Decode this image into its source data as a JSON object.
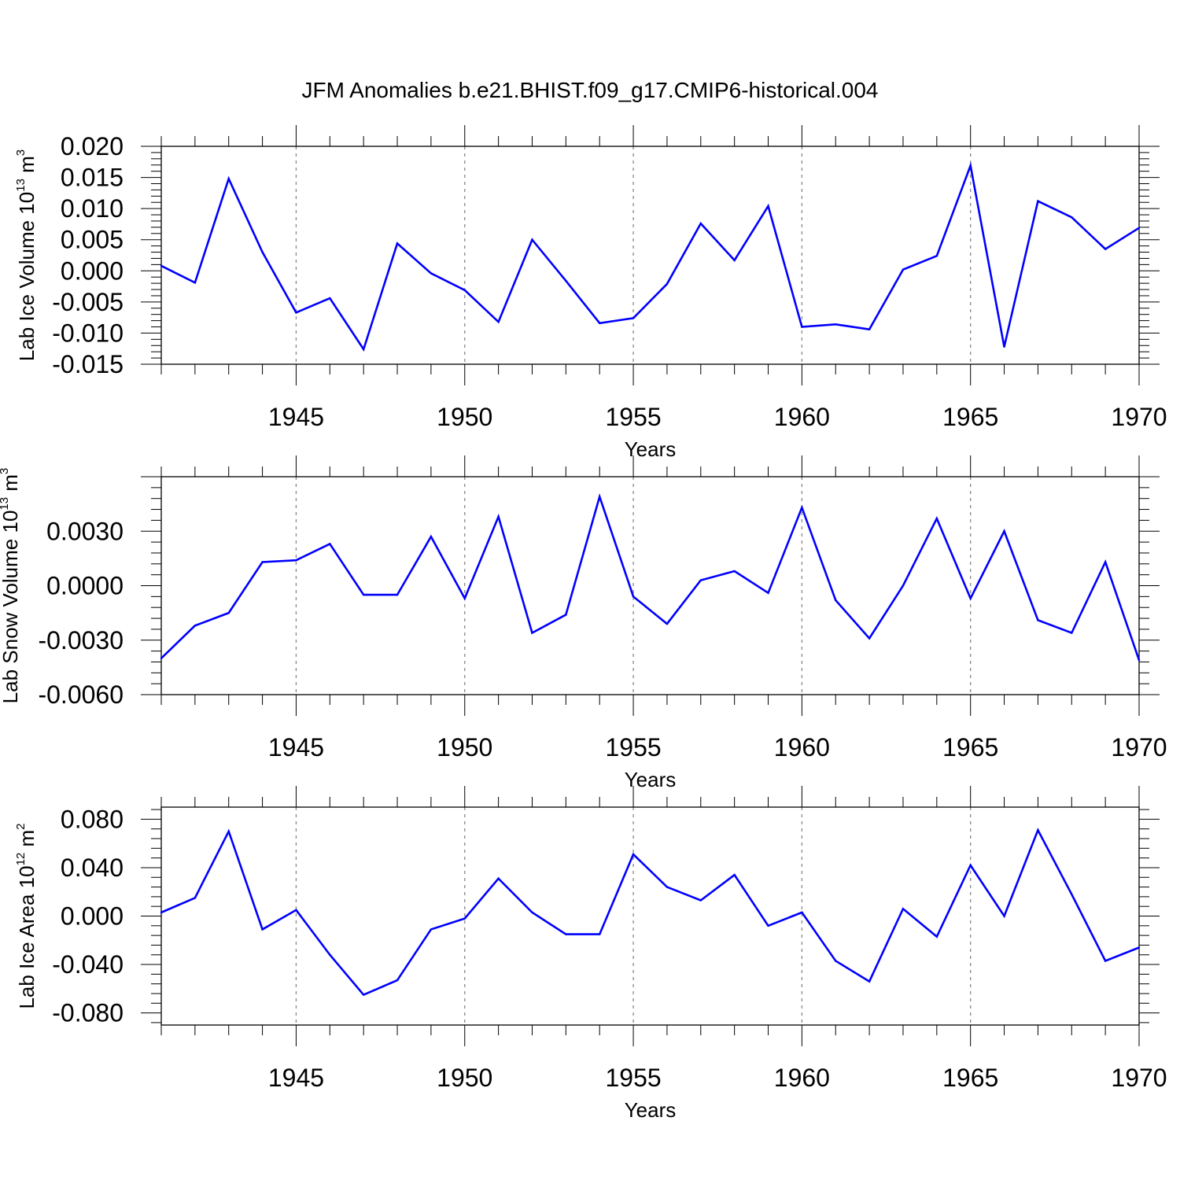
{
  "chart_data": {
    "title": "JFM Anomalies b.e21.BHIST.f09_g17.CMIP6-historical.004",
    "years": [
      1941,
      1942,
      1943,
      1944,
      1945,
      1946,
      1947,
      1948,
      1949,
      1950,
      1951,
      1952,
      1953,
      1954,
      1955,
      1956,
      1957,
      1958,
      1959,
      1960,
      1961,
      1962,
      1963,
      1964,
      1965,
      1966,
      1967,
      1968,
      1969,
      1970
    ],
    "line_color": "#0000ff",
    "gridline_color": "#888888",
    "panels": [
      {
        "type": "line",
        "ylabel_pre": "Lab Ice Volume 10",
        "ylabel_exp": "13",
        "ylabel_unit": " m",
        "ylabel_unit_exp": "3",
        "xlabel": "Years",
        "xlim": [
          1941,
          1970
        ],
        "ylim": [
          -0.015,
          0.02
        ],
        "yticks": [
          -0.015,
          -0.01,
          -0.005,
          0.0,
          0.005,
          0.01,
          0.015,
          0.02
        ],
        "ytick_labels": [
          "-0.015",
          "-0.010",
          "-0.005",
          "0.000",
          "0.005",
          "0.010",
          "0.015",
          "0.020"
        ],
        "xticks": [
          1945,
          1950,
          1955,
          1960,
          1965,
          1970
        ],
        "xtick_labels": [
          "1945",
          "1950",
          "1955",
          "1960",
          "1965",
          "1970"
        ],
        "values": [
          0.0008,
          -0.0019,
          0.0148,
          0.003,
          -0.0067,
          -0.0044,
          -0.0126,
          0.0044,
          -0.0004,
          -0.0031,
          -0.0082,
          0.005,
          -0.0016,
          -0.0084,
          -0.0076,
          -0.0021,
          0.0076,
          0.0017,
          0.0104,
          -0.009,
          -0.0086,
          -0.0094,
          0.0002,
          0.0024,
          0.0169,
          -0.0122,
          0.0112,
          0.0086,
          0.0035,
          0.0069
        ]
      },
      {
        "type": "line",
        "ylabel_pre": "Lab Snow Volume 10",
        "ylabel_exp": "13",
        "ylabel_unit": " m",
        "ylabel_unit_exp": "3",
        "xlabel": "Years",
        "xlim": [
          1941,
          1970
        ],
        "ylim": [
          -0.006,
          0.006
        ],
        "yticks": [
          -0.006,
          -0.003,
          0.0,
          0.003
        ],
        "ytick_labels": [
          "-0.0060",
          "-0.0030",
          "0.0000",
          "0.0030"
        ],
        "xticks": [
          1945,
          1950,
          1955,
          1960,
          1965,
          1970
        ],
        "xtick_labels": [
          "1945",
          "1950",
          "1955",
          "1960",
          "1965",
          "1970"
        ],
        "values": [
          -0.004,
          -0.0022,
          -0.0015,
          0.0013,
          0.0014,
          0.0023,
          -0.0005,
          -0.0005,
          0.0027,
          -0.0007,
          0.0038,
          -0.0026,
          -0.0016,
          0.0049,
          -0.0006,
          -0.0021,
          0.0003,
          0.0008,
          -0.0004,
          0.0043,
          -0.0008,
          -0.0029,
          0.0,
          0.0037,
          -0.0007,
          0.003,
          -0.0019,
          -0.0026,
          0.0013,
          -0.0041
        ]
      },
      {
        "type": "line",
        "ylabel_pre": "Lab Ice Area 10",
        "ylabel_exp": "12",
        "ylabel_unit": " m",
        "ylabel_unit_exp": "2",
        "xlabel": "Years",
        "xlim": [
          1941,
          1970
        ],
        "ylim": [
          -0.09,
          0.09
        ],
        "yticks": [
          -0.08,
          -0.04,
          0.0,
          0.04,
          0.08
        ],
        "ytick_labels": [
          "-0.080",
          "-0.040",
          "0.000",
          "0.040",
          "0.080"
        ],
        "xticks": [
          1945,
          1950,
          1955,
          1960,
          1965,
          1970
        ],
        "xtick_labels": [
          "1945",
          "1950",
          "1955",
          "1960",
          "1965",
          "1970"
        ],
        "values": [
          0.003,
          0.015,
          0.07,
          -0.011,
          0.005,
          -0.032,
          -0.065,
          -0.053,
          -0.011,
          -0.002,
          0.031,
          0.003,
          -0.015,
          -0.015,
          0.051,
          0.024,
          0.013,
          0.034,
          -0.008,
          0.003,
          -0.037,
          -0.054,
          0.006,
          -0.017,
          0.042,
          0.0,
          0.071,
          0.018,
          -0.037,
          -0.026
        ]
      }
    ]
  }
}
